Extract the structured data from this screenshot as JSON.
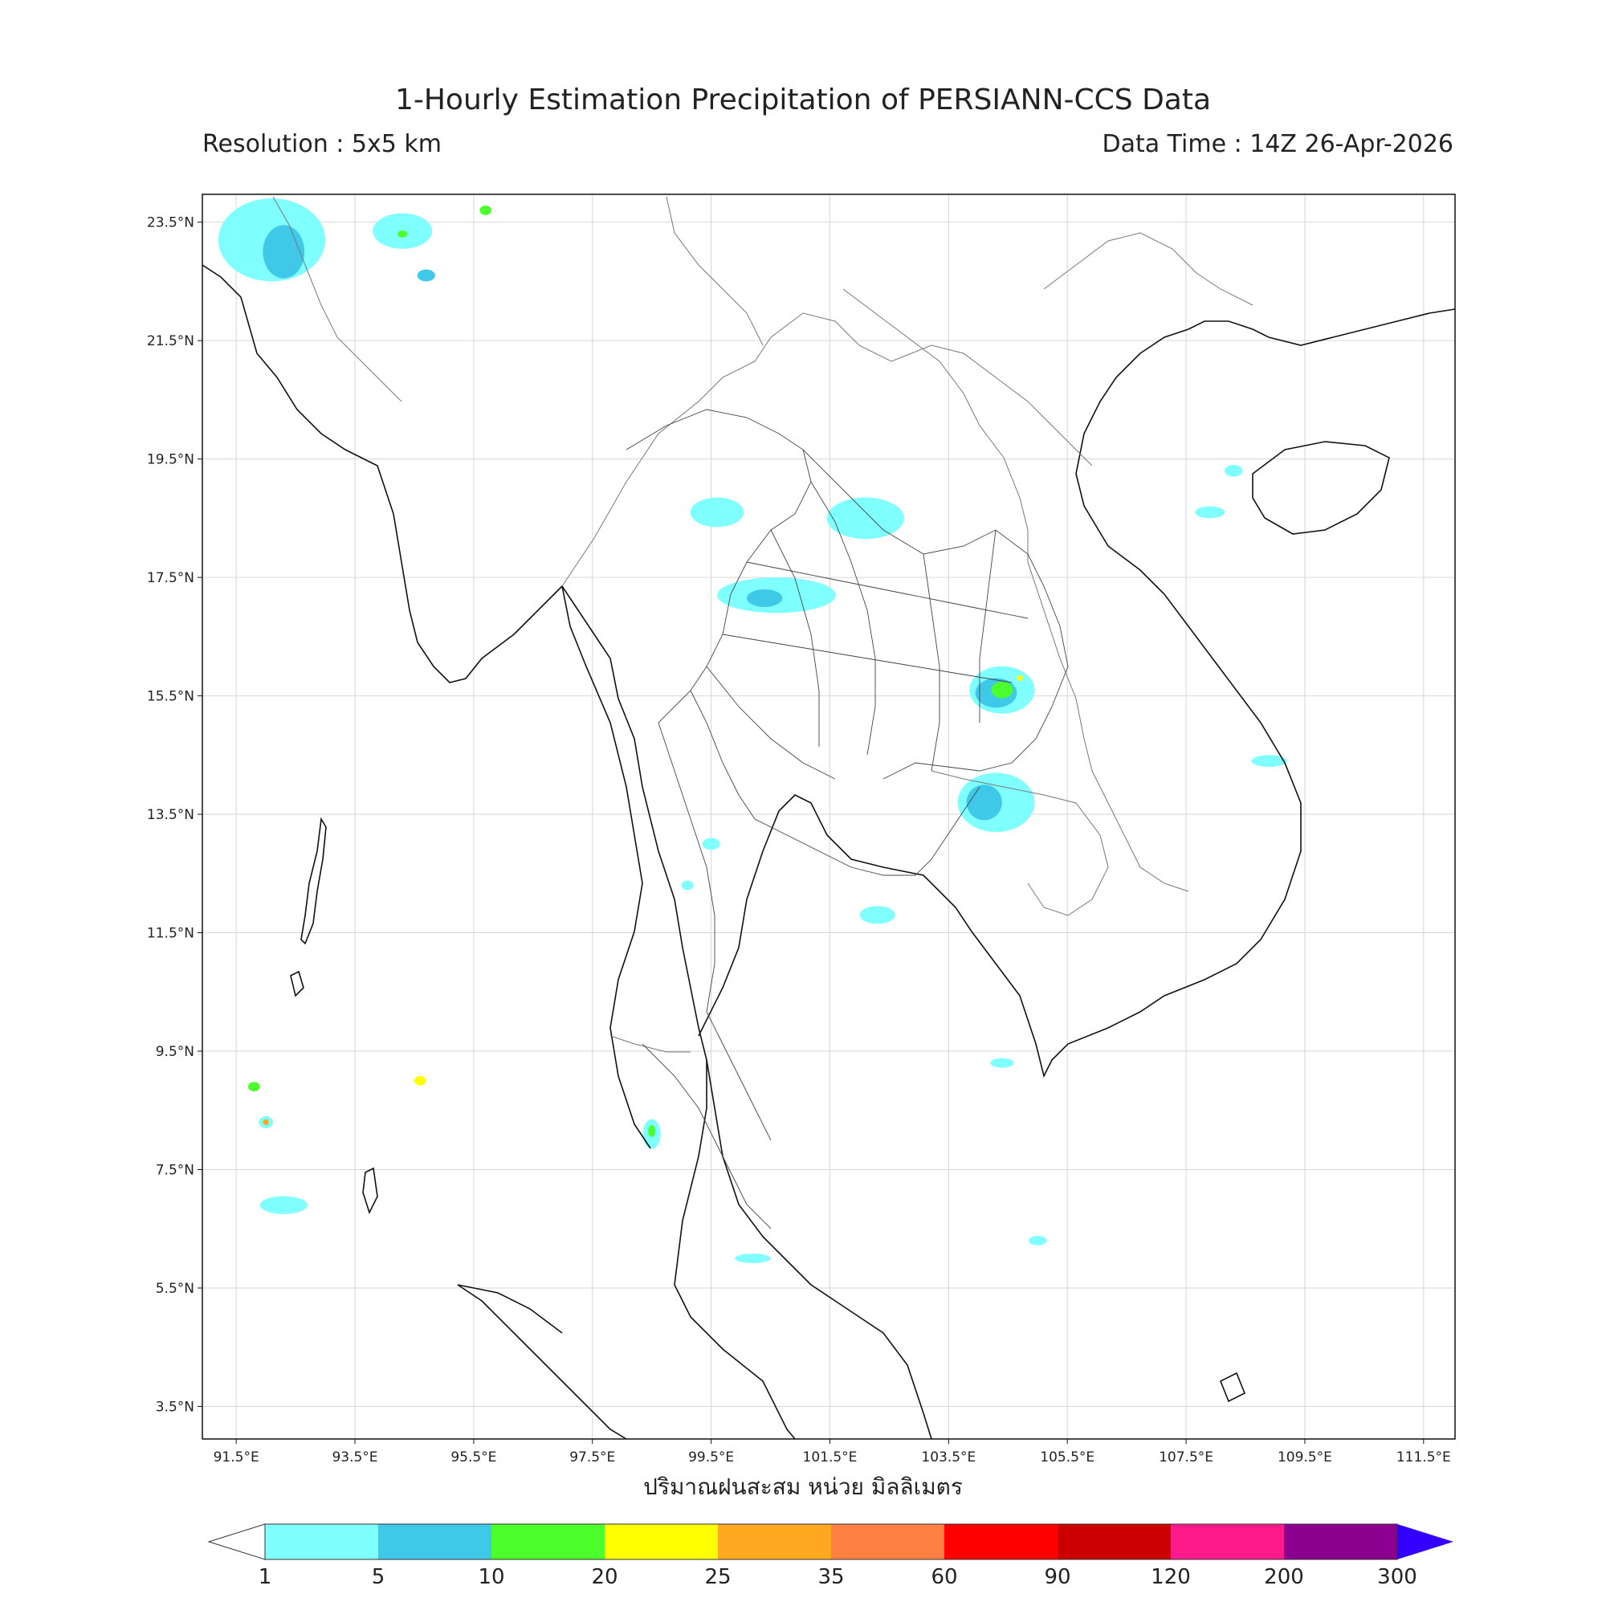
{
  "header": {
    "title": "1-Hourly Estimation Precipitation of PERSIANN-CCS Data",
    "resolution": "Resolution : 5x5 km",
    "data_time": "Data Time : 14Z 26-Apr-2026"
  },
  "axes": {
    "lat_labels": [
      "23.5°N",
      "21.5°N",
      "19.5°N",
      "17.5°N",
      "15.5°N",
      "13.5°N",
      "11.5°N",
      "9.5°N",
      "7.5°N",
      "5.5°N",
      "3.5°N"
    ],
    "lat_values": [
      23.5,
      21.5,
      19.5,
      17.5,
      15.5,
      13.5,
      11.5,
      9.5,
      7.5,
      5.5,
      3.5
    ],
    "lon_labels": [
      "91.5°E",
      "93.5°E",
      "95.5°E",
      "97.5°E",
      "99.5°E",
      "101.5°E",
      "103.5°E",
      "105.5°E",
      "107.5°E",
      "109.5°E",
      "111.5°E"
    ],
    "lon_values": [
      91.5,
      93.5,
      95.5,
      97.5,
      99.5,
      101.5,
      103.5,
      105.5,
      107.5,
      109.5,
      111.5
    ],
    "lon_range": [
      90.93,
      112.03
    ],
    "lat_range": [
      2.95,
      23.97
    ],
    "xlabel": "ปริมาณฝนสะสม หน่วย มิลลิเมตร"
  },
  "colorbar": {
    "ticks": [
      "1",
      "5",
      "10",
      "20",
      "25",
      "35",
      "60",
      "90",
      "120",
      "200",
      "300"
    ],
    "colors": [
      "#80ffff",
      "#40c8e8",
      "#4cff2c",
      "#ffff00",
      "#ffa820",
      "#ff8040",
      "#ff0000",
      "#cc0000",
      "#ff1a8c",
      "#8c0090"
    ],
    "over_color": "#3300ff",
    "under_color": "#ffffff"
  },
  "rain_areas": [
    {
      "lon": 92.1,
      "lat": 23.2,
      "rlon": 0.9,
      "rlat": 0.7,
      "level": 0
    },
    {
      "lon": 92.3,
      "lat": 23.0,
      "rlon": 0.35,
      "rlat": 0.45,
      "level": 1
    },
    {
      "lon": 94.3,
      "lat": 23.35,
      "rlon": 0.5,
      "rlat": 0.3,
      "level": 0
    },
    {
      "lon": 94.3,
      "lat": 23.3,
      "rlon": 0.08,
      "rlat": 0.06,
      "level": 2
    },
    {
      "lon": 94.7,
      "lat": 22.6,
      "rlon": 0.15,
      "rlat": 0.1,
      "level": 1
    },
    {
      "lon": 95.7,
      "lat": 23.7,
      "rlon": 0.1,
      "rlat": 0.08,
      "level": 2
    },
    {
      "lon": 99.6,
      "lat": 18.6,
      "rlon": 0.45,
      "rlat": 0.25,
      "level": 0
    },
    {
      "lon": 102.1,
      "lat": 18.5,
      "rlon": 0.65,
      "rlat": 0.35,
      "level": 0
    },
    {
      "lon": 100.6,
      "lat": 17.2,
      "rlon": 1.0,
      "rlat": 0.3,
      "level": 0
    },
    {
      "lon": 100.4,
      "lat": 17.15,
      "rlon": 0.3,
      "rlat": 0.15,
      "level": 1
    },
    {
      "lon": 104.4,
      "lat": 15.6,
      "rlon": 0.55,
      "rlat": 0.4,
      "level": 0
    },
    {
      "lon": 104.3,
      "lat": 15.55,
      "rlon": 0.35,
      "rlat": 0.25,
      "level": 1
    },
    {
      "lon": 104.4,
      "lat": 15.6,
      "rlon": 0.18,
      "rlat": 0.14,
      "level": 2
    },
    {
      "lon": 104.7,
      "lat": 15.8,
      "rlon": 0.05,
      "rlat": 0.05,
      "level": 3
    },
    {
      "lon": 104.3,
      "lat": 13.7,
      "rlon": 0.65,
      "rlat": 0.5,
      "level": 0
    },
    {
      "lon": 104.1,
      "lat": 13.7,
      "rlon": 0.3,
      "rlat": 0.3,
      "level": 1
    },
    {
      "lon": 102.3,
      "lat": 11.8,
      "rlon": 0.3,
      "rlat": 0.15,
      "level": 0
    },
    {
      "lon": 108.9,
      "lat": 14.4,
      "rlon": 0.3,
      "rlat": 0.1,
      "level": 0
    },
    {
      "lon": 108.3,
      "lat": 19.3,
      "rlon": 0.15,
      "rlat": 0.1,
      "level": 0
    },
    {
      "lon": 107.9,
      "lat": 18.6,
      "rlon": 0.25,
      "rlat": 0.1,
      "level": 0
    },
    {
      "lon": 98.5,
      "lat": 8.1,
      "rlon": 0.15,
      "rlat": 0.25,
      "level": 0
    },
    {
      "lon": 98.5,
      "lat": 8.15,
      "rlon": 0.06,
      "rlat": 0.1,
      "level": 2
    },
    {
      "lon": 92.0,
      "lat": 8.3,
      "rlon": 0.12,
      "rlat": 0.1,
      "level": 0
    },
    {
      "lon": 92.0,
      "lat": 8.3,
      "rlon": 0.05,
      "rlat": 0.05,
      "level": 4
    },
    {
      "lon": 92.3,
      "lat": 6.9,
      "rlon": 0.4,
      "rlat": 0.15,
      "level": 0
    },
    {
      "lon": 94.6,
      "lat": 9.0,
      "rlon": 0.1,
      "rlat": 0.08,
      "level": 3
    },
    {
      "lon": 91.8,
      "lat": 8.9,
      "rlon": 0.1,
      "rlat": 0.08,
      "level": 2
    },
    {
      "lon": 100.2,
      "lat": 6.0,
      "rlon": 0.3,
      "rlat": 0.08,
      "level": 0
    },
    {
      "lon": 105.0,
      "lat": 6.3,
      "rlon": 0.15,
      "rlat": 0.08,
      "level": 0
    },
    {
      "lon": 104.4,
      "lat": 9.3,
      "rlon": 0.2,
      "rlat": 0.08,
      "level": 0
    },
    {
      "lon": 99.5,
      "lat": 13.0,
      "rlon": 0.15,
      "rlat": 0.1,
      "level": 0
    },
    {
      "lon": 99.1,
      "lat": 12.3,
      "rlon": 0.1,
      "rlat": 0.08,
      "level": 0
    }
  ]
}
